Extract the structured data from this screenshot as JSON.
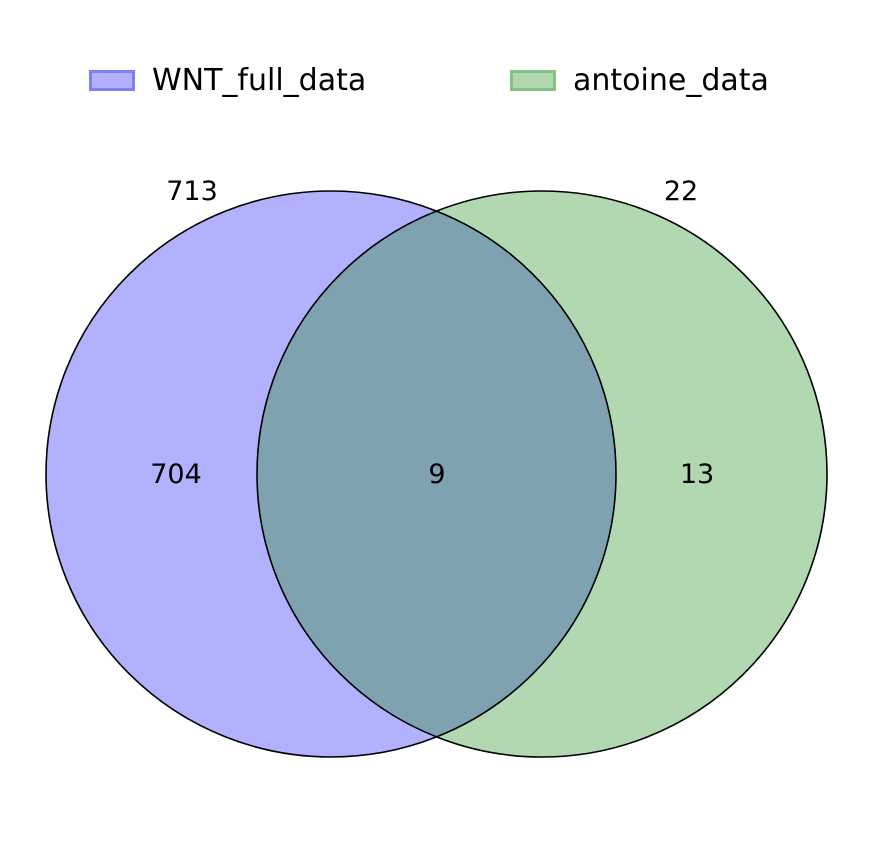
{
  "sets": [
    {
      "name": "WNT_full_data",
      "total": "713",
      "fill": "#b1b1fd",
      "edge": "#8080f5"
    },
    {
      "name": "antoine_data",
      "total": "22",
      "fill": "#b2d8b2",
      "edge": "#86c286"
    }
  ],
  "regions": {
    "only_a": "704",
    "both": "9",
    "only_b": "13"
  },
  "overlap_fill": "#7ea2b0",
  "outline_color": "#000000"
}
